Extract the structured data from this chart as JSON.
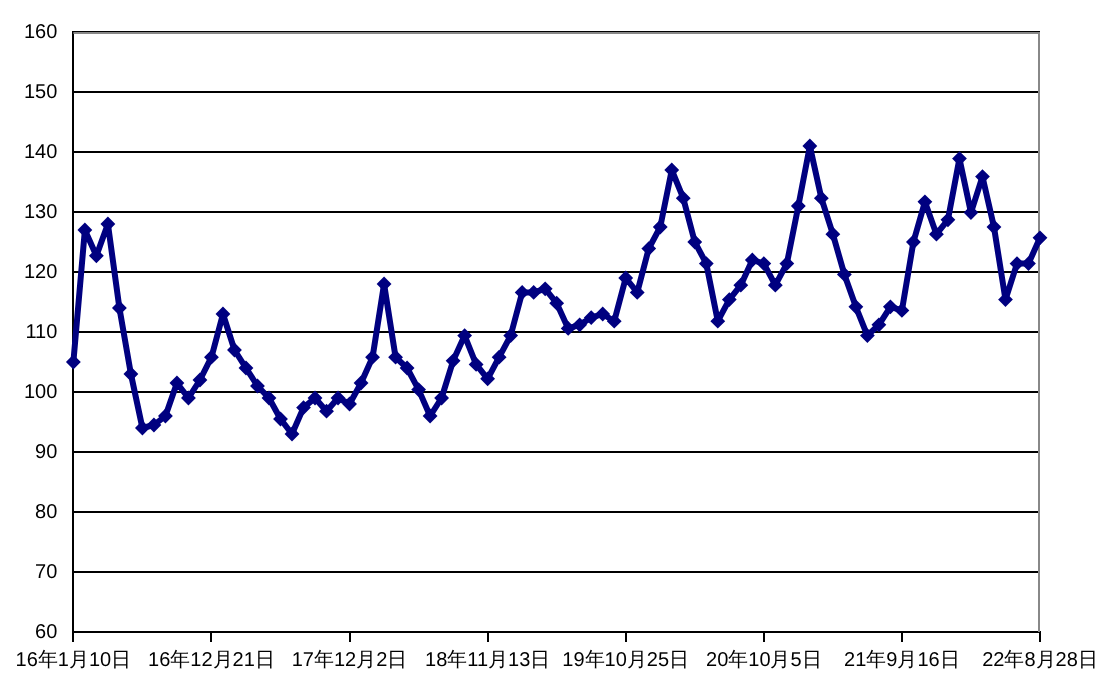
{
  "chart_data": {
    "type": "line",
    "categories": [
      "16年1月10日",
      null,
      null,
      null,
      null,
      null,
      null,
      null,
      null,
      null,
      null,
      null,
      "16年12月21日",
      null,
      null,
      null,
      null,
      null,
      null,
      null,
      null,
      null,
      null,
      null,
      "17年12月2日",
      null,
      null,
      null,
      null,
      null,
      null,
      null,
      null,
      null,
      null,
      null,
      "18年11月13日",
      null,
      null,
      null,
      null,
      null,
      null,
      null,
      null,
      null,
      null,
      null,
      "19年10月25日",
      null,
      null,
      null,
      null,
      null,
      null,
      null,
      null,
      null,
      null,
      null,
      "20年10月5日",
      null,
      null,
      null,
      null,
      null,
      null,
      null,
      null,
      null,
      null,
      null,
      "21年9月16日",
      null,
      null,
      null,
      null,
      null,
      null,
      null,
      null,
      null,
      null,
      null,
      "22年8月28日"
    ],
    "series": [
      {
        "color": "#000080",
        "values": [
          105,
          127,
          122.7,
          128,
          114,
          103,
          94,
          94.5,
          96,
          101.5,
          99,
          102,
          105.8,
          113,
          107,
          104,
          101,
          99,
          95.5,
          93,
          97.4,
          99,
          96.8,
          99,
          98,
          101.5,
          105.8,
          118,
          105.8,
          104,
          100.4,
          96,
          99,
          105.2,
          109.4,
          104.6,
          102.2,
          105.8,
          109.4,
          116.6,
          116.6,
          117.2,
          114.8,
          110.6,
          111.2,
          112.4,
          113,
          111.8,
          119,
          116.6,
          123.9,
          127.5,
          137,
          132.3,
          125,
          121.4,
          111.8,
          115.4,
          117.8,
          122,
          121.4,
          117.8,
          121.4,
          131,
          141,
          132.3,
          126.3,
          119.6,
          114.2,
          109.4,
          111.2,
          114.2,
          113.6,
          125,
          131.7,
          126.3,
          128.7,
          138.9,
          129.9,
          135.9,
          127.5,
          115.4,
          121.4,
          121.4,
          125.7
        ]
      }
    ],
    "ylim": [
      60,
      160
    ],
    "yticks": [
      60,
      70,
      80,
      90,
      100,
      110,
      120,
      130,
      140,
      150,
      160
    ],
    "grid": "y",
    "marker": "diamond",
    "line_style": "solid"
  }
}
